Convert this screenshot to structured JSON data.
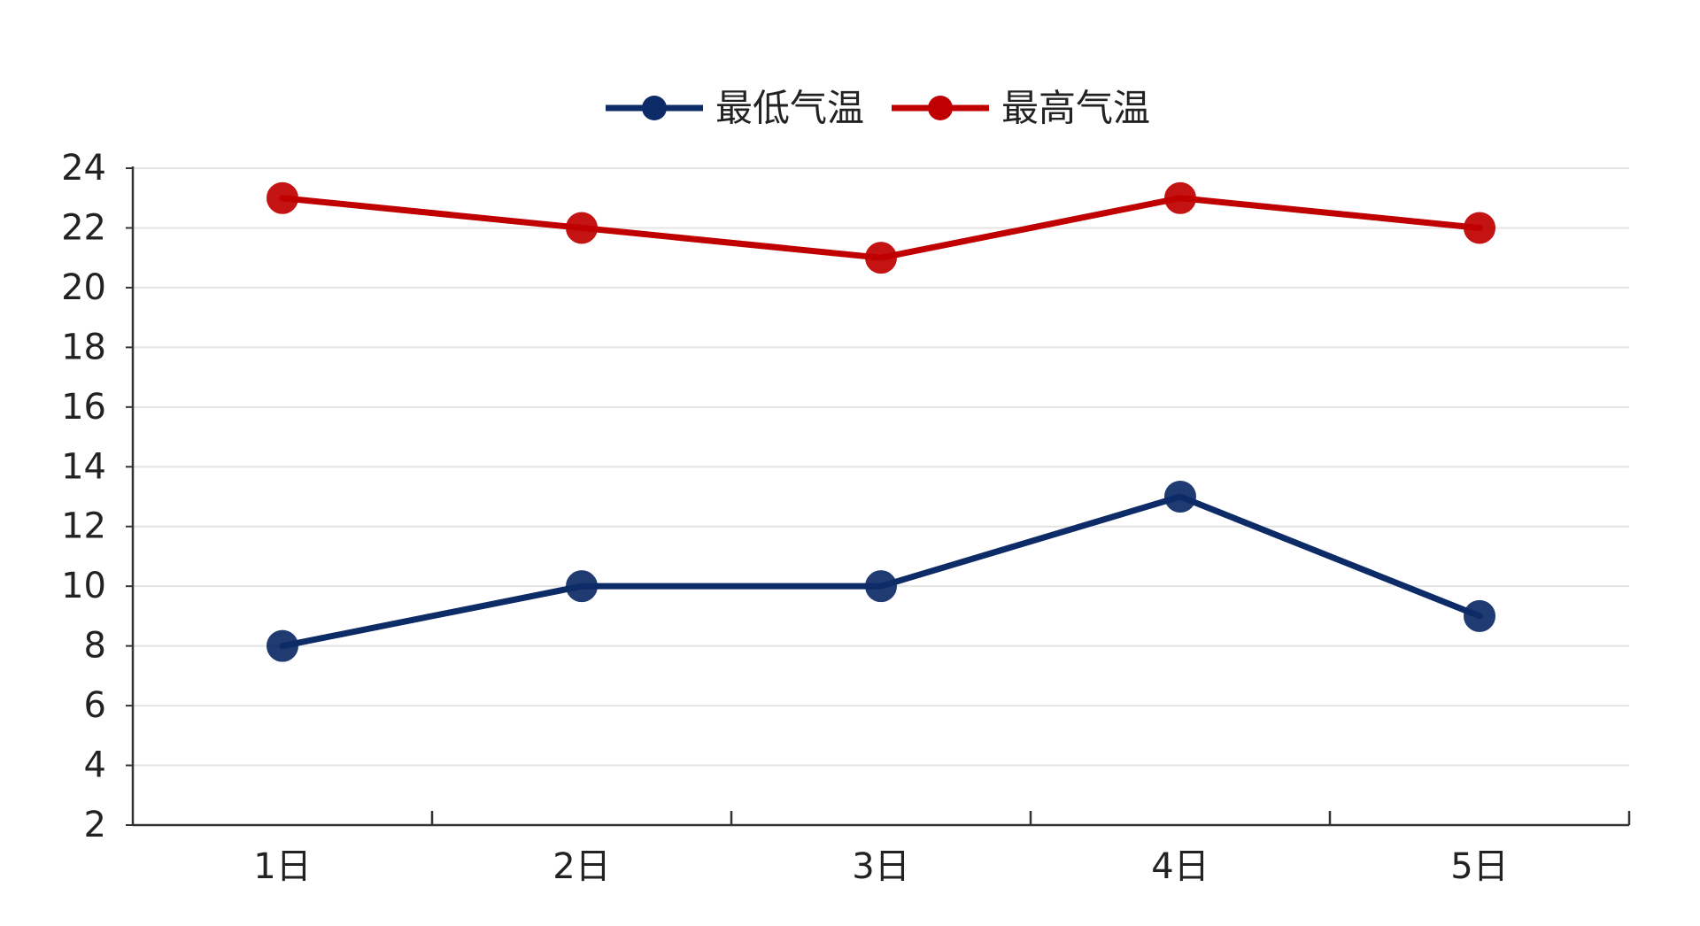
{
  "chart_data": {
    "type": "line",
    "categories": [
      "1日",
      "2日",
      "3日",
      "4日",
      "5日"
    ],
    "series": [
      {
        "name": "最低气温",
        "values": [
          8,
          10,
          10,
          13,
          9
        ],
        "color": "#0d2b66"
      },
      {
        "name": "最高气温",
        "values": [
          23,
          22,
          21,
          23,
          22
        ],
        "color": "#c00000"
      }
    ],
    "y_ticks": [
      "2",
      "4",
      "6",
      "8",
      "10",
      "12",
      "14",
      "16",
      "18",
      "20",
      "22",
      "24"
    ],
    "ylim": [
      2,
      24
    ],
    "grid": true,
    "legend_position": "top-center",
    "title": "",
    "xlabel": "",
    "ylabel": ""
  }
}
